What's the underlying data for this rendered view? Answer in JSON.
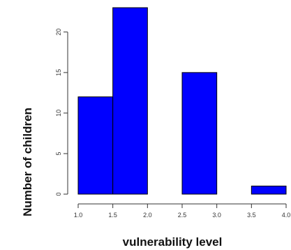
{
  "chart_data": {
    "type": "bar",
    "title": "",
    "xlabel": "vulnerability level",
    "ylabel": "Number of children",
    "bins": [
      {
        "start": 1.0,
        "end": 1.5,
        "value": 12
      },
      {
        "start": 1.5,
        "end": 2.0,
        "value": 23
      },
      {
        "start": 2.0,
        "end": 2.5,
        "value": 0
      },
      {
        "start": 2.5,
        "end": 3.0,
        "value": 15
      },
      {
        "start": 3.0,
        "end": 3.5,
        "value": 0
      },
      {
        "start": 3.5,
        "end": 4.0,
        "value": 1
      }
    ],
    "xlim": [
      1.0,
      4.0
    ],
    "ylim": [
      0,
      23
    ],
    "x_ticks": [
      1.0,
      1.5,
      2.0,
      2.5,
      3.0,
      3.5,
      4.0
    ],
    "x_tick_labels": [
      "1.0",
      "1.5",
      "2.0",
      "2.5",
      "3.0",
      "3.5",
      "4.0"
    ],
    "y_ticks": [
      0,
      5,
      10,
      15,
      20
    ],
    "y_tick_labels": [
      "0",
      "5",
      "10",
      "15",
      "20"
    ],
    "bar_color": "#0000ff",
    "bar_edge_color": "#000000",
    "grid": false,
    "legend": "none"
  }
}
